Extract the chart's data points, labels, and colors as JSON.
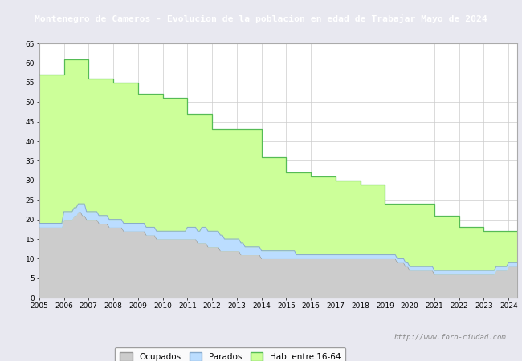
{
  "title": "Montenegro de Cameros - Evolucion de la poblacion en edad de Trabajar Mayo de 2024",
  "title_bg": "#4a7cc7",
  "title_color": "white",
  "ylim": [
    0,
    65
  ],
  "yticks": [
    0,
    5,
    10,
    15,
    20,
    25,
    30,
    35,
    40,
    45,
    50,
    55,
    60,
    65
  ],
  "years": [
    2005,
    2006,
    2007,
    2008,
    2009,
    2010,
    2011,
    2012,
    2013,
    2014,
    2015,
    2016,
    2017,
    2018,
    2019,
    2020,
    2021,
    2022,
    2023,
    2024
  ],
  "hab1664": [
    57,
    61,
    56,
    55,
    52,
    51,
    47,
    43,
    43,
    36,
    32,
    31,
    30,
    29,
    24,
    24,
    21,
    18,
    17,
    17
  ],
  "ocupados_monthly": [
    18,
    18,
    18,
    18,
    18,
    18,
    18,
    18,
    18,
    18,
    18,
    18,
    20,
    20,
    20,
    20,
    20,
    21,
    21,
    22,
    22,
    21,
    21,
    20,
    20,
    20,
    20,
    20,
    20,
    19,
    19,
    19,
    19,
    19,
    18,
    18,
    18,
    18,
    18,
    18,
    18,
    17,
    17,
    17,
    17,
    17,
    17,
    17,
    17,
    17,
    17,
    17,
    16,
    16,
    16,
    16,
    16,
    15,
    15,
    15,
    15,
    15,
    15,
    15,
    15,
    15,
    15,
    15,
    15,
    15,
    15,
    15,
    15,
    15,
    15,
    15,
    15,
    14,
    14,
    14,
    14,
    14,
    13,
    13,
    13,
    13,
    13,
    13,
    12,
    12,
    12,
    12,
    12,
    12,
    12,
    12,
    12,
    12,
    11,
    11,
    11,
    11,
    11,
    11,
    11,
    11,
    11,
    11,
    10,
    10,
    10,
    10,
    10,
    10,
    10,
    10,
    10,
    10,
    10,
    10,
    10,
    10,
    10,
    10,
    10,
    10,
    10,
    10,
    10,
    10,
    10,
    10,
    10,
    10,
    10,
    10,
    10,
    10,
    10,
    10,
    10,
    10,
    10,
    10,
    10,
    10,
    10,
    10,
    10,
    10,
    10,
    10,
    10,
    10,
    10,
    10,
    10,
    10,
    10,
    10,
    10,
    10,
    10,
    10,
    10,
    10,
    10,
    10,
    10,
    10,
    10,
    10,
    10,
    10,
    9,
    9,
    9,
    9,
    8,
    8,
    7,
    7,
    7,
    7,
    7,
    7,
    7,
    7,
    7,
    7,
    7,
    7,
    6,
    6,
    6,
    6,
    6,
    6,
    6,
    6,
    6,
    6,
    6,
    6,
    6,
    6,
    6,
    6,
    6,
    6,
    6,
    6,
    6,
    6,
    6,
    6,
    6,
    6,
    6,
    6,
    6,
    6,
    7,
    7,
    7,
    7,
    7,
    7,
    8,
    8,
    8,
    8,
    8
  ],
  "parados_monthly": [
    1,
    1,
    1,
    1,
    1,
    1,
    1,
    1,
    1,
    1,
    1,
    1,
    2,
    2,
    2,
    2,
    2,
    2,
    2,
    2,
    2,
    3,
    3,
    2,
    2,
    2,
    2,
    2,
    2,
    2,
    2,
    2,
    2,
    2,
    2,
    2,
    2,
    2,
    2,
    2,
    2,
    2,
    2,
    2,
    2,
    2,
    2,
    2,
    2,
    2,
    2,
    2,
    2,
    2,
    2,
    2,
    2,
    2,
    2,
    2,
    2,
    2,
    2,
    2,
    2,
    2,
    2,
    2,
    2,
    2,
    2,
    2,
    3,
    3,
    3,
    3,
    3,
    3,
    3,
    4,
    4,
    4,
    4,
    4,
    4,
    4,
    4,
    4,
    4,
    4,
    3,
    3,
    3,
    3,
    3,
    3,
    3,
    3,
    3,
    3,
    2,
    2,
    2,
    2,
    2,
    2,
    2,
    2,
    2,
    2,
    2,
    2,
    2,
    2,
    2,
    2,
    2,
    2,
    2,
    2,
    2,
    2,
    2,
    2,
    2,
    1,
    1,
    1,
    1,
    1,
    1,
    1,
    1,
    1,
    1,
    1,
    1,
    1,
    1,
    1,
    1,
    1,
    1,
    1,
    1,
    1,
    1,
    1,
    1,
    1,
    1,
    1,
    1,
    1,
    1,
    1,
    1,
    1,
    1,
    1,
    1,
    1,
    1,
    1,
    1,
    1,
    1,
    1,
    1,
    1,
    1,
    1,
    1,
    1,
    1,
    1,
    1,
    1,
    1,
    1,
    1,
    1,
    1,
    1,
    1,
    1,
    1,
    1,
    1,
    1,
    1,
    1,
    1,
    1,
    1,
    1,
    1,
    1,
    1,
    1,
    1,
    1,
    1,
    1,
    1,
    1,
    1,
    1,
    1,
    1,
    1,
    1,
    1,
    1,
    1,
    1,
    1,
    1,
    1,
    1,
    1,
    1,
    1,
    1,
    1,
    1,
    1,
    1,
    1,
    1,
    1,
    1,
    1
  ],
  "hab1664_color": "#ccff99",
  "hab1664_edge": "#55bb55",
  "ocupados_color": "#cccccc",
  "ocupados_edge": "#999999",
  "parados_color": "#bbddff",
  "parados_edge": "#88aacc",
  "grid_color": "#cccccc",
  "bg_color": "#e8e8f0",
  "watermark": "http://www.foro-ciudad.com",
  "legend_labels": [
    "Ocupados",
    "Parados",
    "Hab. entre 16-64"
  ]
}
